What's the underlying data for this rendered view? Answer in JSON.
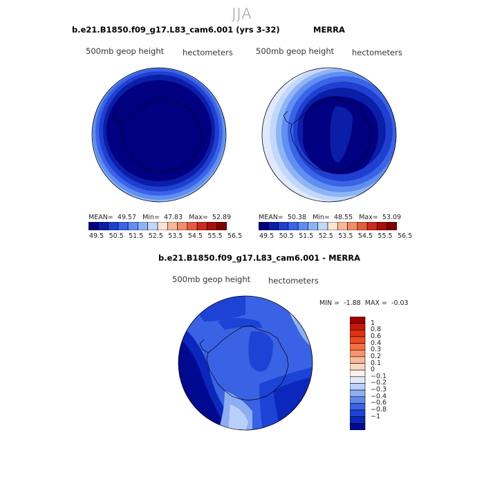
{
  "title": "JJA",
  "panels": [
    {
      "title": "b.e21.B1850.f09_g17.L83_cam6.001 (yrs 3-32)",
      "field_label": "500mb geop height",
      "units": "hectometers",
      "stats": {
        "mean_label": "MEAN=",
        "mean": "49.57",
        "min_label": "Min=",
        "min": "47.83",
        "max_label": "Max=",
        "max": "52.89"
      }
    },
    {
      "title": "MERRA",
      "field_label": "500mb geop height",
      "units": "hectometers",
      "stats": {
        "mean_label": "MEAN=",
        "mean": "50.38",
        "min_label": "Min=",
        "min": "48.55",
        "max_label": "Max=",
        "max": "53.09"
      }
    }
  ],
  "abs_colorbar": {
    "colors": [
      "#000080",
      "#0a1ea8",
      "#1f3fd0",
      "#3a63e8",
      "#5f8ff0",
      "#8fb4f5",
      "#c2d8fa",
      "#fde3d3",
      "#f7b99a",
      "#f08e6a",
      "#e35d3d",
      "#cc2a1a",
      "#a80e0e",
      "#800000"
    ],
    "labels": [
      "49.5",
      "50.5",
      "51.5",
      "52.5",
      "53.5",
      "54.5",
      "55.5",
      "56.5"
    ]
  },
  "diff_panel": {
    "title": "b.e21.B1850.f09_g17.L83_cam6.001 - MERRA",
    "field_label": "500mb geop height",
    "units": "hectometers",
    "stats": {
      "min_label": "MIN =",
      "min": "-1.88",
      "max_label": "MAX =",
      "max": "-0.03"
    }
  },
  "diff_colorbar": {
    "colors": [
      "#a00000",
      "#c41808",
      "#e0320f",
      "#f04a22",
      "#f5703f",
      "#f7946a",
      "#f9b898",
      "#fbd6c2",
      "#fdf1ea",
      "#dfe9fb",
      "#b9d0f8",
      "#8eaef3",
      "#6088ec",
      "#3a62e4",
      "#1d43d6",
      "#0c27bc",
      "#000a90"
    ],
    "labels": [
      "1",
      "0.8",
      "0.6",
      "0.4",
      "0.3",
      "0.2",
      "0.1",
      "0",
      "−0.1",
      "−0.2",
      "−0.3",
      "−0.4",
      "−0.6",
      "−0.8",
      "−1"
    ]
  }
}
